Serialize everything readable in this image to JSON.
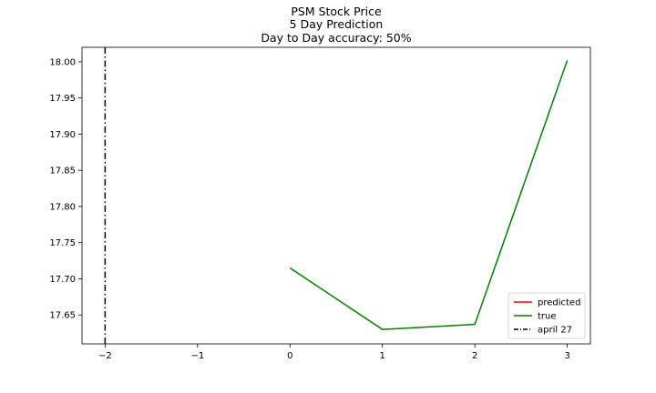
{
  "chart_data": {
    "type": "line",
    "title_lines": [
      "PSM Stock Price",
      "5 Day Prediction",
      "Day to Day accuracy: 50%"
    ],
    "xlabel": "",
    "ylabel": "",
    "xlim": [
      -2.25,
      3.25
    ],
    "ylim": [
      17.61,
      18.02
    ],
    "x_ticks": [
      -2,
      -1,
      0,
      1,
      2,
      3
    ],
    "x_tick_labels": [
      "−2",
      "−1",
      "0",
      "1",
      "2",
      "3"
    ],
    "y_ticks": [
      17.65,
      17.7,
      17.75,
      17.8,
      17.85,
      17.9,
      17.95,
      18.0
    ],
    "y_tick_labels": [
      "17.65",
      "17.70",
      "17.75",
      "17.80",
      "17.85",
      "17.90",
      "17.95",
      "18.00"
    ],
    "grid": false,
    "legend_position": "lower-right",
    "series": [
      {
        "name": "predicted",
        "color": "#ff0000",
        "style": "solid",
        "x": [],
        "y": []
      },
      {
        "name": "true",
        "color": "#008000",
        "style": "solid",
        "x": [
          0,
          1,
          2,
          3
        ],
        "y": [
          17.715,
          17.63,
          17.637,
          18.002
        ]
      },
      {
        "name": "april 27",
        "color": "#000000",
        "style": "dashdot",
        "vline_x": -2
      }
    ]
  }
}
